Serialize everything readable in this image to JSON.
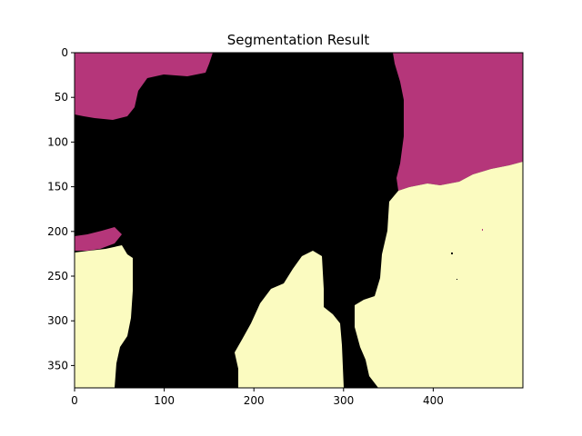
{
  "figure": {
    "title": "Segmentation Result"
  },
  "image": {
    "width": 500,
    "height": 375,
    "colormap": "magma",
    "classes": [
      {
        "id": 0,
        "color": "#000000"
      },
      {
        "id": 1,
        "color": "#b5367a"
      },
      {
        "id": 2,
        "color": "#fbfbc0"
      }
    ]
  },
  "axes": {
    "x_ticks": [
      "0",
      "100",
      "200",
      "300",
      "400"
    ],
    "x_tick_values": [
      0,
      100,
      200,
      300,
      400
    ],
    "y_ticks": [
      "0",
      "50",
      "100",
      "150",
      "200",
      "250",
      "300",
      "350"
    ],
    "y_tick_values": [
      0,
      50,
      100,
      150,
      200,
      250,
      300,
      350
    ]
  }
}
